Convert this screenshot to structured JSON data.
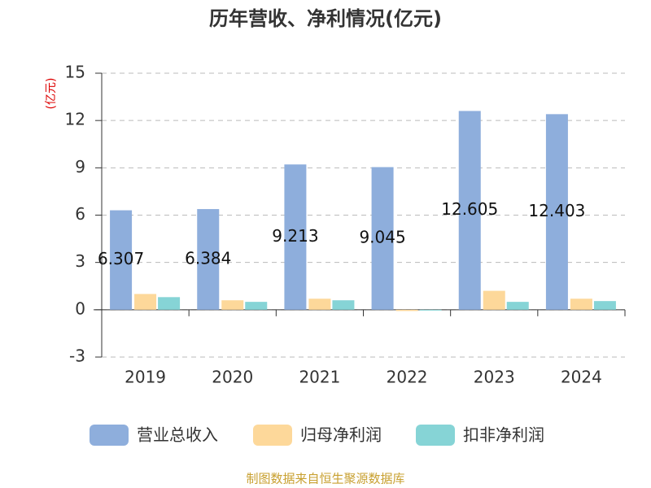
{
  "chart_data": {
    "type": "bar",
    "title": "历年营收、净利情况(亿元)",
    "y_label": "(亿元)",
    "source": "制图数据来自恒生聚源数据库",
    "categories": [
      "2019",
      "2020",
      "2021",
      "2022",
      "2023",
      "2024"
    ],
    "series": [
      {
        "name": "营业总收入",
        "color": "#8eaedc",
        "values": [
          6.307,
          6.384,
          9.213,
          9.045,
          12.605,
          12.403
        ]
      },
      {
        "name": "归母净利润",
        "color": "#fdd89a",
        "values": [
          1.0,
          0.6,
          0.7,
          -0.08,
          1.2,
          0.7
        ]
      },
      {
        "name": "扣非净利润",
        "color": "#86d4d6",
        "values": [
          0.8,
          0.5,
          0.6,
          -0.05,
          0.5,
          0.55
        ]
      }
    ],
    "ylim": [
      -3,
      15
    ],
    "yticks": [
      -3,
      0,
      3,
      6,
      9,
      12,
      15
    ],
    "grid": true
  }
}
